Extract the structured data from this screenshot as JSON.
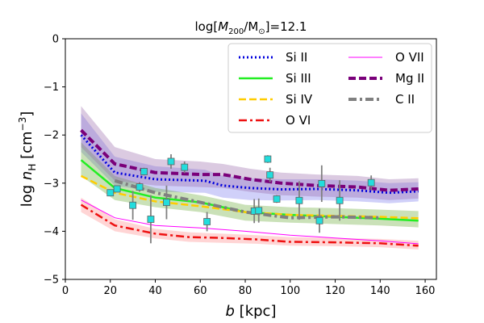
{
  "chart_data": {
    "type": "line",
    "title_prefix": "log[",
    "title_m": "M",
    "title_sub200": "200",
    "title_slash": "/M",
    "title_sunsub": "⊙",
    "title_suffix": "]=12.1",
    "xlabel_b": "b",
    "xlabel_unit": " [kpc]",
    "ylabel_log": "log ",
    "ylabel_n": "n",
    "ylabel_H": "H",
    "ylabel_unit": " [cm",
    "ylabel_exp": "−3",
    "ylabel_close": "]",
    "xlim": [
      0,
      165
    ],
    "ylim": [
      -5,
      0
    ],
    "xticks": [
      0,
      20,
      40,
      60,
      80,
      100,
      120,
      140,
      160
    ],
    "yticks": [
      0,
      -1,
      -2,
      -3,
      -4,
      -5
    ],
    "xtick_labels": [
      "0",
      "20",
      "40",
      "60",
      "80",
      "100",
      "120",
      "140",
      "160"
    ],
    "ytick_labels": [
      "0",
      "−1",
      "−2",
      "−3",
      "−4",
      "−5"
    ],
    "series": [
      {
        "name": "Si II",
        "color": "#0000dd",
        "dash": "dotted",
        "width": 3,
        "x": [
          7,
          22,
          40,
          62,
          70,
          82,
          96,
          112,
          130,
          144,
          157
        ],
        "y": [
          -2.0,
          -2.78,
          -2.92,
          -2.95,
          -3.05,
          -3.1,
          -3.13,
          -3.12,
          -3.15,
          -3.2,
          -3.17
        ],
        "band": {
          "color": "#7777ee",
          "upper": [
            -1.55,
            -2.45,
            -2.65,
            -2.72,
            -2.85,
            -2.9,
            -2.92,
            -2.92,
            -2.95,
            -3.0,
            -2.98
          ],
          "lower": [
            -2.35,
            -3.05,
            -3.18,
            -3.2,
            -3.3,
            -3.35,
            -3.36,
            -3.35,
            -3.38,
            -3.42,
            -3.38
          ]
        }
      },
      {
        "name": "Si III",
        "color": "#22ee22",
        "dash": "solid",
        "width": 2.5,
        "x": [
          7,
          22,
          40,
          60,
          80,
          100,
          120,
          140,
          157
        ],
        "y": [
          -2.52,
          -3.1,
          -3.3,
          -3.4,
          -3.6,
          -3.66,
          -3.7,
          -3.74,
          -3.78
        ],
        "band": {
          "color": "#66aa33",
          "upper": [
            -2.15,
            -2.85,
            -3.1,
            -3.25,
            -3.45,
            -3.5,
            -3.52,
            -3.55,
            -3.58
          ],
          "lower": [
            -2.85,
            -3.35,
            -3.5,
            -3.6,
            -3.78,
            -3.82,
            -3.85,
            -3.88,
            -3.92
          ]
        }
      },
      {
        "name": "Si IV",
        "color": "#ffcc00",
        "dash": "dashed",
        "width": 2.5,
        "x": [
          7,
          22,
          40,
          60,
          80,
          100,
          120,
          140,
          157
        ],
        "y": [
          -2.85,
          -3.2,
          -3.38,
          -3.48,
          -3.6,
          -3.66,
          -3.68,
          -3.7,
          -3.73
        ],
        "band": null
      },
      {
        "name": "O VI",
        "color": "#ee1111",
        "dash": "dashdot",
        "width": 2.5,
        "x": [
          7,
          22,
          40,
          55,
          70,
          85,
          100,
          120,
          140,
          157
        ],
        "y": [
          -3.45,
          -3.88,
          -4.05,
          -4.12,
          -4.14,
          -4.17,
          -4.22,
          -4.23,
          -4.25,
          -4.3
        ],
        "band": {
          "color": "#ff8888",
          "upper": [
            -3.3,
            -3.75,
            -3.95,
            -4.02,
            -4.05,
            -4.08,
            -4.12,
            -4.14,
            -4.16,
            -4.2
          ],
          "lower": [
            -3.6,
            -4.0,
            -4.15,
            -4.22,
            -4.24,
            -4.26,
            -4.3,
            -4.31,
            -4.33,
            -4.38
          ]
        }
      },
      {
        "name": "O VII",
        "color": "#ff00ff",
        "dash": "solid",
        "width": 1,
        "x": [
          7,
          22,
          40,
          60,
          80,
          100,
          120,
          140,
          157
        ],
        "y": [
          -3.35,
          -3.72,
          -3.88,
          -3.93,
          -4.0,
          -4.08,
          -4.14,
          -4.2,
          -4.26
        ],
        "band": null
      },
      {
        "name": "Mg II",
        "color": "#7a007a",
        "dash": "dashed",
        "width": 4,
        "x": [
          7,
          22,
          40,
          60,
          70,
          82,
          96,
          112,
          130,
          144,
          157
        ],
        "y": [
          -1.9,
          -2.6,
          -2.78,
          -2.82,
          -2.82,
          -2.92,
          -3.0,
          -3.05,
          -3.08,
          -3.15,
          -3.12
        ],
        "band": {
          "color": "#9966aa",
          "upper": [
            -1.4,
            -2.25,
            -2.5,
            -2.55,
            -2.6,
            -2.7,
            -2.78,
            -2.82,
            -2.85,
            -2.92,
            -2.9
          ],
          "lower": [
            -2.25,
            -2.95,
            -3.05,
            -3.08,
            -3.1,
            -3.18,
            -3.25,
            -3.28,
            -3.3,
            -3.35,
            -3.32
          ]
        }
      },
      {
        "name": "C II",
        "color": "#808080",
        "dash": "dashdot",
        "width": 4,
        "x": [
          22,
          40,
          60,
          80,
          100,
          120,
          140
        ],
        "y": [
          -2.95,
          -3.2,
          -3.4,
          -3.6,
          -3.72,
          -3.7,
          -3.72
        ],
        "band": null
      }
    ],
    "observations": {
      "color": "#22dddd",
      "points": [
        {
          "x": 20,
          "y": -3.2,
          "err": 0.06
        },
        {
          "x": 23,
          "y": -3.12,
          "err": 0.06
        },
        {
          "x": 30,
          "y": -3.46,
          "err": 0.3
        },
        {
          "x": 33,
          "y": -3.08,
          "err": 0.1
        },
        {
          "x": 35,
          "y": -2.76,
          "err": 0.08
        },
        {
          "x": 38,
          "y": -3.75,
          "err": 0.5
        },
        {
          "x": 45,
          "y": -3.4,
          "err": 0.35
        },
        {
          "x": 47,
          "y": -2.55,
          "err": 0.15
        },
        {
          "x": 53,
          "y": -2.67,
          "err": 0.12
        },
        {
          "x": 63,
          "y": -3.8,
          "err": 0.2
        },
        {
          "x": 84,
          "y": -3.58,
          "err": 0.25
        },
        {
          "x": 86,
          "y": -3.57,
          "err": 0.25
        },
        {
          "x": 90,
          "y": -2.5,
          "err": 0.08
        },
        {
          "x": 91,
          "y": -2.83,
          "err": 0.15
        },
        {
          "x": 94,
          "y": -3.33,
          "err": 0.08
        },
        {
          "x": 104,
          "y": -3.36,
          "err": 0.4
        },
        {
          "x": 113,
          "y": -3.78,
          "err": 0.25
        },
        {
          "x": 114,
          "y": -3.01,
          "err": 0.38
        },
        {
          "x": 122,
          "y": -3.36,
          "err": 0.42
        },
        {
          "x": 136,
          "y": -2.99,
          "err": 0.15
        }
      ]
    },
    "legend_position": "top-right",
    "grid": false
  }
}
